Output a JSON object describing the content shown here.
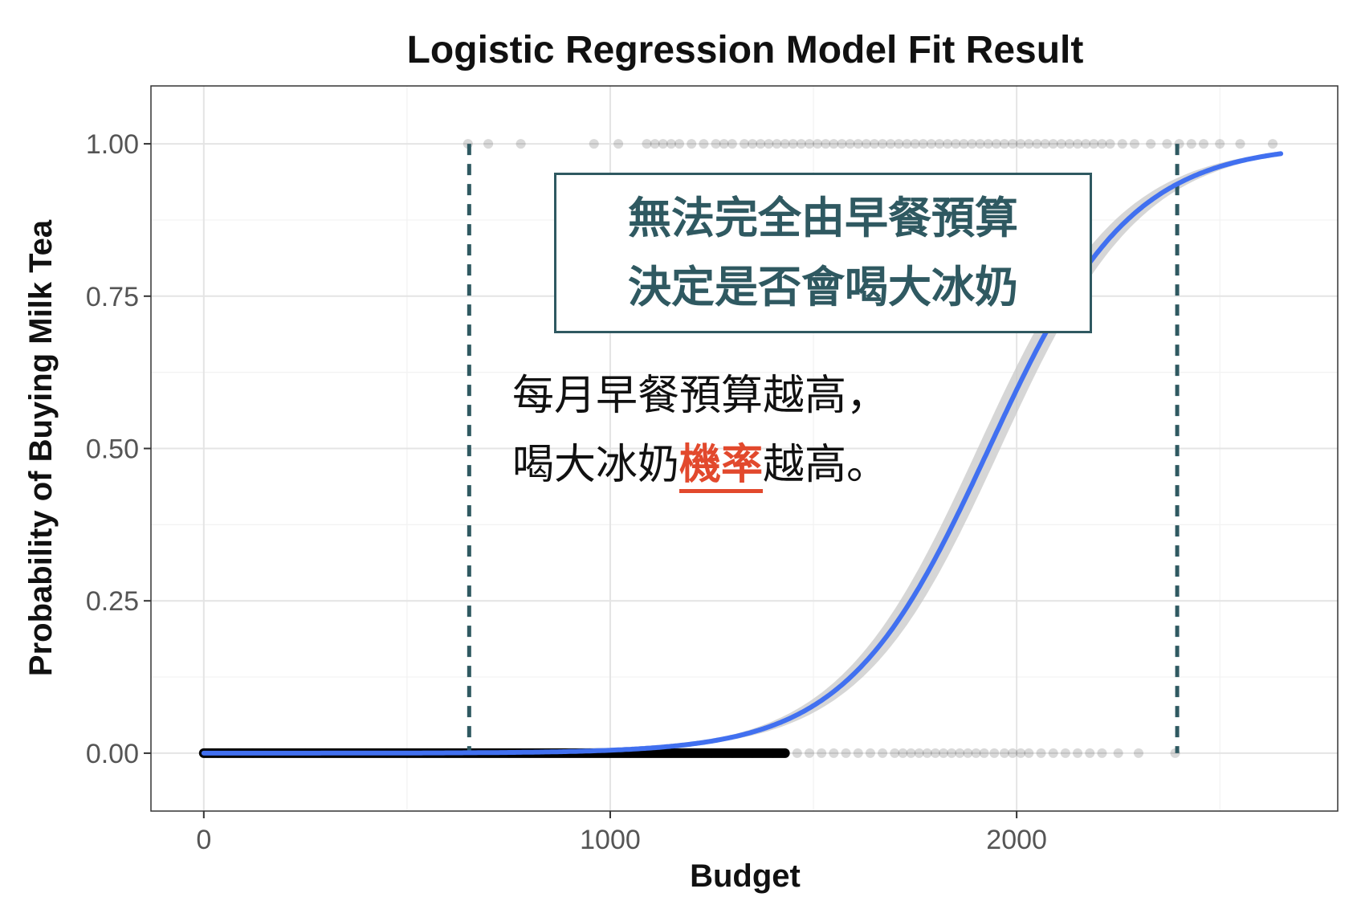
{
  "chart_data": {
    "type": "scatter",
    "title": "Logistic Regression Model Fit Result",
    "xlabel": "Budget",
    "ylabel": "Probability of Buying Milk Tea",
    "xlim": [
      -130,
      2790
    ],
    "ylim": [
      -0.095,
      1.095
    ],
    "x_ticks": [
      0,
      1000,
      2000
    ],
    "x_tick_labels": [
      "0",
      "1000",
      "2000"
    ],
    "y_ticks": [
      0,
      0.25,
      0.5,
      0.75,
      1
    ],
    "y_tick_labels": [
      "0.00",
      "0.25",
      "0.50",
      "0.75",
      "1.00"
    ],
    "grid": true,
    "series": [
      {
        "kind": "points",
        "color": "#000000",
        "opacity": 0.15,
        "y0_x": [
          0,
          5,
          10,
          20,
          35,
          60,
          90,
          120,
          150,
          200,
          250,
          300,
          350,
          400,
          450,
          500,
          550,
          600,
          650,
          700,
          750,
          800,
          850,
          900,
          950,
          1000,
          1050,
          1100,
          1150,
          1200,
          1250,
          1300,
          1350,
          1400,
          1430,
          1460,
          1490,
          1520,
          1550,
          1580,
          1610,
          1640,
          1670,
          1700,
          1720,
          1740,
          1760,
          1780,
          1800,
          1820,
          1840,
          1860,
          1880,
          1900,
          1920,
          1945,
          1970,
          1990,
          2010,
          2030,
          2060,
          2090,
          2120,
          2150,
          2180,
          2210,
          2250,
          2300,
          2390
        ],
        "y1_x": [
          650,
          700,
          780,
          960,
          1020,
          1090,
          1110,
          1130,
          1150,
          1170,
          1200,
          1230,
          1260,
          1280,
          1300,
          1330,
          1350,
          1370,
          1390,
          1410,
          1430,
          1450,
          1470,
          1490,
          1510,
          1530,
          1550,
          1570,
          1590,
          1610,
          1630,
          1650,
          1670,
          1690,
          1710,
          1730,
          1750,
          1770,
          1790,
          1810,
          1830,
          1850,
          1870,
          1890,
          1910,
          1930,
          1950,
          1970,
          1990,
          2010,
          2030,
          2050,
          2070,
          2090,
          2110,
          2130,
          2150,
          2170,
          2190,
          2210,
          2230,
          2260,
          2290,
          2330,
          2370,
          2400,
          2430,
          2460,
          2500,
          2550,
          2630
        ]
      },
      {
        "kind": "logistic-fit",
        "color": "#4170f0",
        "band_color": "#c8c8c8",
        "intercept": -11.05,
        "slope": 0.00572,
        "x_range": [
          0,
          2650
        ]
      }
    ],
    "reference_lines": {
      "x": [
        653,
        2395
      ],
      "color": "#2f5961",
      "style": "dashed"
    },
    "annotations": {
      "box_lines": [
        "無法完全由早餐預算",
        "決定是否會喝大冰奶"
      ],
      "note_line1": "每月早餐預算越高，",
      "note_line2_pre": "喝大冰奶",
      "note_line2_highlight": "機率",
      "note_line2_post": "越高。"
    }
  }
}
